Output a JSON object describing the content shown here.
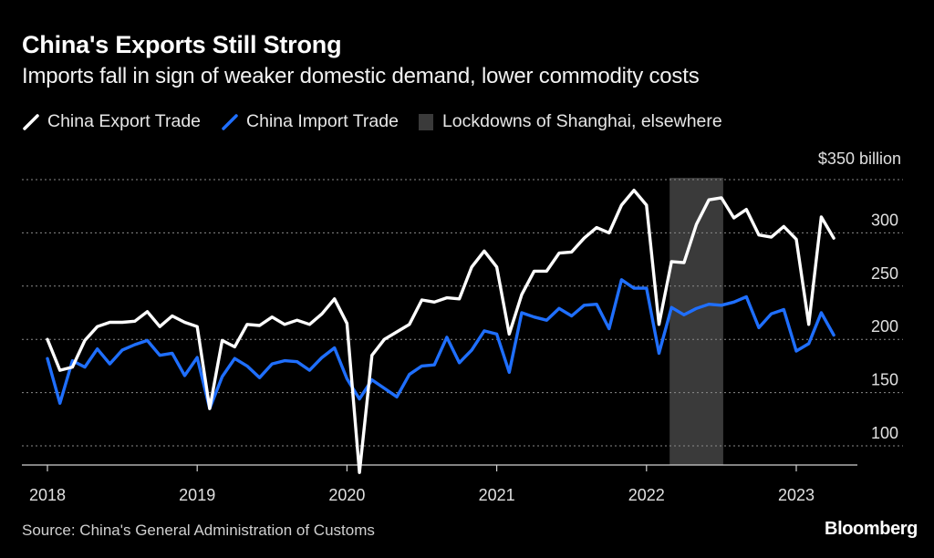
{
  "header": {
    "title": "China's Exports Still Strong",
    "subtitle": "Imports fall in sign of weaker domestic demand, lower commodity costs"
  },
  "legend": {
    "export_label": "China Export Trade",
    "import_label": "China Import Trade",
    "lockdown_label": "Lockdowns of Shanghai, elsewhere"
  },
  "footer": {
    "source": "Source: China's General Administration of Customs",
    "brand": "Bloomberg"
  },
  "colors": {
    "background": "#000000",
    "export": "#ffffff",
    "import": "#1f6fff",
    "lockdown": "#3a3a3a",
    "grid": "#8a8a8a"
  },
  "chart_data": {
    "type": "line",
    "title": "China's Exports Still Strong",
    "subtitle": "Imports fall in sign of weaker domestic demand, lower commodity costs",
    "y_unit_label": "$350 billion",
    "y_ticks": [
      100,
      150,
      200,
      250,
      300
    ],
    "ylim": [
      80,
      350
    ],
    "x_ticks": [
      "2018",
      "2019",
      "2020",
      "2021",
      "2022",
      "2023"
    ],
    "x_start": "2018-01",
    "grid": "horizontal dotted",
    "legend_position": "top-left",
    "shaded_region": {
      "label": "Lockdowns of Shanghai, elsewhere",
      "start": "2022-03",
      "end": "2022-07"
    },
    "series": [
      {
        "name": "China Export Trade",
        "color": "#ffffff",
        "values": [
          200,
          171,
          174,
          199,
          212,
          216,
          216,
          217,
          226,
          212,
          222,
          216,
          212,
          135,
          199,
          193,
          214,
          213,
          221,
          214,
          218,
          214,
          224,
          238,
          215,
          75,
          185,
          200,
          207,
          214,
          237,
          235,
          239,
          238,
          268,
          283,
          268,
          205,
          242,
          264,
          264,
          281,
          282,
          295,
          305,
          300,
          326,
          340,
          326,
          214,
          273,
          272,
          308,
          331,
          333,
          314,
          322,
          298,
          296,
          306,
          294,
          214,
          315,
          295
        ]
      },
      {
        "name": "China Import Trade",
        "color": "#1f6fff",
        "values": [
          182,
          140,
          180,
          174,
          191,
          177,
          190,
          195,
          199,
          185,
          187,
          166,
          183,
          135,
          165,
          182,
          175,
          164,
          177,
          180,
          179,
          171,
          183,
          192,
          163,
          144,
          162,
          154,
          146,
          167,
          175,
          176,
          202,
          178,
          190,
          208,
          205,
          169,
          225,
          221,
          218,
          229,
          222,
          232,
          233,
          210,
          256,
          248,
          248,
          187,
          230,
          223,
          229,
          233,
          232,
          235,
          240,
          211,
          224,
          228,
          189,
          196,
          225,
          204
        ]
      }
    ]
  }
}
